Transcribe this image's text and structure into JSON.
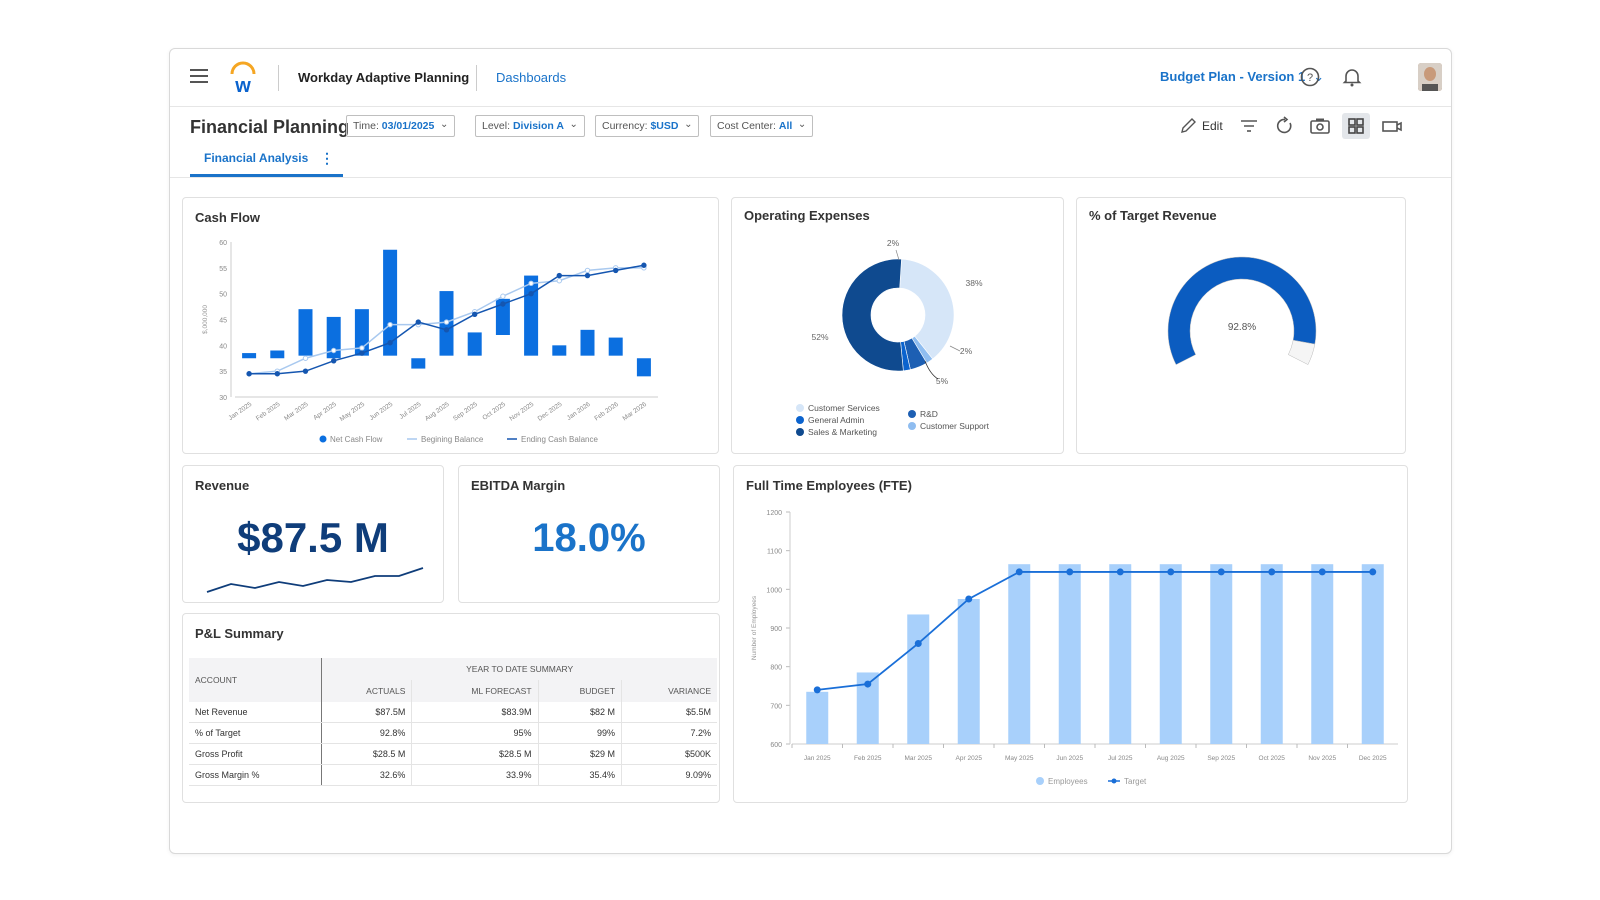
{
  "header": {
    "app_title": "Workday Adaptive Planning",
    "dashboards_link": "Dashboards",
    "plan_selector": "Budget Plan - Version 1"
  },
  "toolbar": {
    "page_title": "Financial Planning",
    "filters": [
      {
        "label": "Time:",
        "value": "03/01/2025"
      },
      {
        "label": "Level:",
        "value": "Division A"
      },
      {
        "label": "Currency:",
        "value": "$USD"
      },
      {
        "label": "Cost Center:",
        "value": "All"
      }
    ],
    "edit_label": "Edit",
    "tab_label": "Financial Analysis"
  },
  "cash_flow": {
    "title": "Cash Flow",
    "ylabel": "$,000,000",
    "legend": [
      "Net Cash Flow",
      "Begining Balance",
      "Ending Cash Balance"
    ]
  },
  "opex": {
    "title": "Operating Expenses",
    "legend": [
      "Customer Services",
      "General Admin",
      "Sales & Marketing",
      "R&D",
      "Customer Support"
    ]
  },
  "target_revenue": {
    "title": "% of Target Revenue",
    "value_label": "92.8%",
    "value": 92.8
  },
  "revenue": {
    "title": "Revenue",
    "value": "$87.5 M",
    "sparkline": [
      2,
      4,
      3,
      4.5,
      3.5,
      5,
      4.5,
      6,
      6,
      8
    ]
  },
  "ebitda": {
    "title": "EBITDA Margin",
    "value": "18.0%"
  },
  "pl_summary": {
    "title": "P&L Summary",
    "account_header": "ACCOUNT",
    "group_header": "YEAR TO DATE SUMMARY",
    "columns": [
      "ACTUALS",
      "ML FORECAST",
      "BUDGET",
      "VARIANCE"
    ],
    "rows": [
      {
        "account": "Net Revenue",
        "actuals": "$87.5M",
        "forecast": "$83.9M",
        "budget": "$82 M",
        "variance": "$5.5M"
      },
      {
        "account": "% of Target",
        "actuals": "92.8%",
        "forecast": "95%",
        "budget": "99%",
        "variance": "7.2%"
      },
      {
        "account": "Gross Profit",
        "actuals": "$28.5 M",
        "forecast": "$28.5 M",
        "budget": "$29 M",
        "variance": "$500K"
      },
      {
        "account": "Gross Margin %",
        "actuals": "32.6%",
        "forecast": "33.9%",
        "budget": "35.4%",
        "variance": "9.09%"
      }
    ]
  },
  "fte": {
    "title": "Full Time Employees (FTE)",
    "ylabel": "Number of Employees",
    "legend": [
      "Employees",
      "Target"
    ]
  },
  "chart_data": [
    {
      "id": "cash_flow",
      "type": "bar",
      "title": "Cash Flow",
      "categories": [
        "Jan 2025",
        "Feb 2025",
        "Mar 2025",
        "Apr 2025",
        "May 2025",
        "Jun 2025",
        "Jul 2025",
        "Aug 2025",
        "Sep 2025",
        "Oct 2025",
        "Nov 2025",
        "Dec 2025",
        "Jan 2026",
        "Feb 2026",
        "Mar 2026"
      ],
      "ylim": [
        30,
        60
      ],
      "yticks": [
        30,
        35,
        40,
        45,
        50,
        55,
        60
      ],
      "series": [
        {
          "name": "Net Cash Flow",
          "kind": "floating_bar",
          "low": [
            37.5,
            37.5,
            38,
            37.5,
            38,
            38,
            35.5,
            38,
            38,
            42,
            38,
            38,
            38,
            38,
            34
          ],
          "high": [
            38.5,
            39,
            47,
            45.5,
            47,
            58.5,
            37.5,
            50.5,
            42.5,
            49,
            53.5,
            40,
            43,
            41.5,
            37.5
          ]
        },
        {
          "name": "Begining Balance",
          "kind": "line",
          "values": [
            34.5,
            35,
            37.5,
            39,
            39.5,
            44,
            44,
            44.5,
            46.5,
            49.5,
            52,
            52.5,
            54.5,
            55,
            55
          ]
        },
        {
          "name": "Ending Cash Balance",
          "kind": "line",
          "values": [
            34.5,
            34.5,
            35,
            37,
            38.5,
            40.5,
            44.5,
            43,
            46,
            48,
            50,
            53.5,
            53.5,
            54.5,
            55.5
          ]
        }
      ]
    },
    {
      "id": "opex",
      "type": "pie",
      "title": "Operating Expenses",
      "labels": [
        "Customer Services",
        "General Admin",
        "R&D",
        "Customer Support",
        "Sales & Marketing"
      ],
      "values": [
        38,
        2,
        5,
        2,
        52
      ],
      "value_labels": [
        "38%",
        "2%",
        "5%",
        "2%",
        "52%"
      ],
      "extra_labels": [
        "2%"
      ],
      "colors": [
        "#d6e6f8",
        "#8fbdf0",
        "#1d5fb3",
        "#0b63ce",
        "#0f4a8f"
      ]
    },
    {
      "id": "target_gauge",
      "type": "gauge",
      "value": 92.8,
      "max": 100
    },
    {
      "id": "fte",
      "type": "bar",
      "title": "Full Time Employees (FTE)",
      "categories": [
        "Jan 2025",
        "Feb 2025",
        "Mar 2025",
        "Apr 2025",
        "May 2025",
        "Jun 2025",
        "Jul 2025",
        "Aug 2025",
        "Sep 2025",
        "Oct 2025",
        "Nov 2025",
        "Dec 2025"
      ],
      "ylim": [
        600,
        1200
      ],
      "yticks": [
        600,
        700,
        800,
        900,
        1000,
        1100,
        1200
      ],
      "series": [
        {
          "name": "Employees",
          "kind": "bar",
          "values": [
            735,
            785,
            935,
            975,
            1065,
            1065,
            1065,
            1065,
            1065,
            1065,
            1065,
            1065
          ]
        },
        {
          "name": "Target",
          "kind": "line",
          "values": [
            740,
            755,
            860,
            975,
            1045,
            1045,
            1045,
            1045,
            1045,
            1045,
            1045,
            1045
          ]
        }
      ]
    }
  ]
}
